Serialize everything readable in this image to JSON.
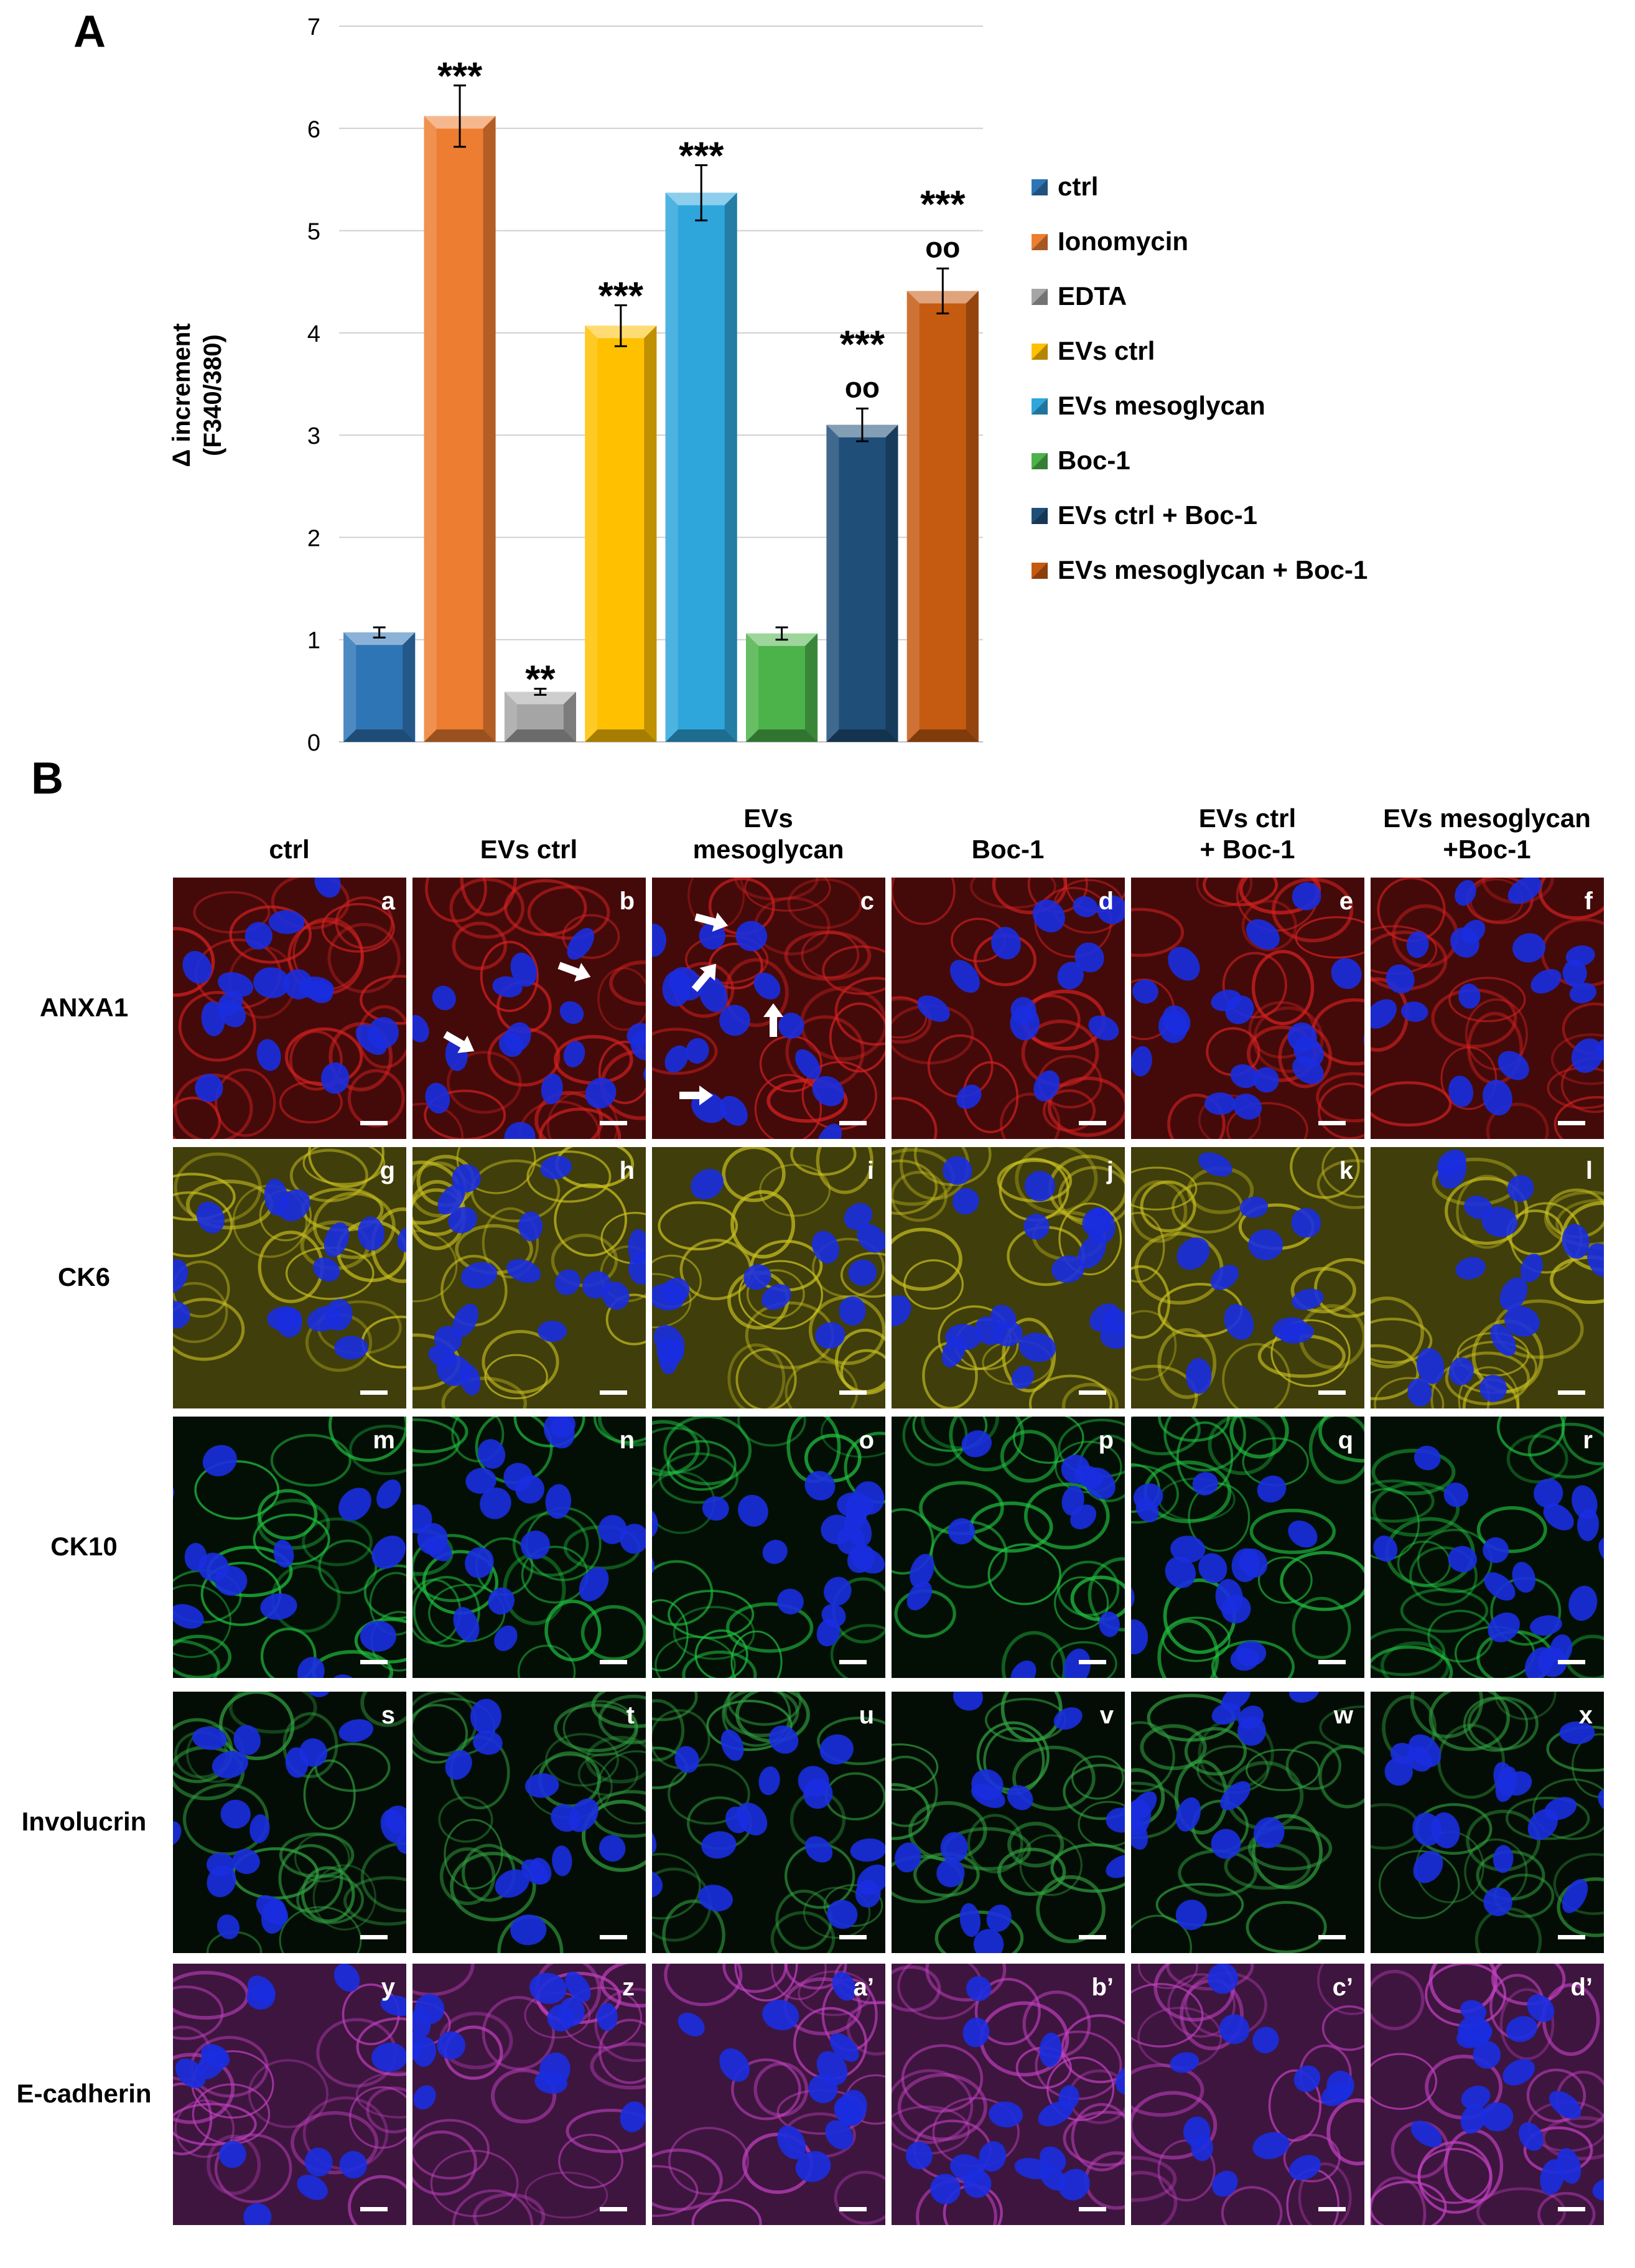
{
  "panel_labels": {
    "a": "A",
    "b": "B"
  },
  "chart_data": {
    "type": "bar",
    "title": "",
    "ylabel_line1": "Δ increment",
    "ylabel_line2": "(F340/380)",
    "ylim": [
      0,
      7
    ],
    "yticks": [
      0,
      1,
      2,
      3,
      4,
      5,
      6,
      7
    ],
    "grid": true,
    "legend_position": "right",
    "categories": [
      "ctrl",
      "Ionomycin",
      "EDTA",
      "EVs ctrl",
      "EVs mesoglycan",
      "Boc-1",
      "EVs ctrl + Boc-1",
      "EVs mesoglycan + Boc-1"
    ],
    "values": [
      1.07,
      6.12,
      0.49,
      4.07,
      5.37,
      1.06,
      3.1,
      4.41
    ],
    "errors": [
      0.05,
      0.3,
      0.03,
      0.2,
      0.27,
      0.06,
      0.16,
      0.22
    ],
    "colors": [
      "#2e75b6",
      "#ed7d31",
      "#a5a5a5",
      "#ffc000",
      "#2ea6dc",
      "#4cb24a",
      "#1f4e79",
      "#c55a11"
    ],
    "annotations": [
      {
        "category": "Ionomycin",
        "text": "***"
      },
      {
        "category": "EDTA",
        "text": "**"
      },
      {
        "category": "EVs ctrl",
        "text": "***"
      },
      {
        "category": "EVs mesoglycan",
        "text": "***"
      },
      {
        "category": "EVs ctrl + Boc-1",
        "text": "***"
      },
      {
        "category": "EVs ctrl + Boc-1",
        "text": "oo"
      },
      {
        "category": "EVs mesoglycan + Boc-1",
        "text": "***"
      },
      {
        "category": "EVs mesoglycan + Boc-1",
        "text": "oo"
      }
    ]
  },
  "microscopy": {
    "columns": [
      "ctrl",
      "EVs ctrl",
      "EVs\nmesoglycan",
      "Boc-1",
      "EVs ctrl\n+ Boc-1",
      "EVs mesoglycan\n+Boc-1"
    ],
    "rows": [
      {
        "label": "ANXA1",
        "stain_color": "#d42020",
        "letters": [
          "a",
          "b",
          "c",
          "d",
          "e",
          "f"
        ]
      },
      {
        "label": "CK6",
        "stain_color": "#c8c020",
        "letters": [
          "g",
          "h",
          "i",
          "j",
          "k",
          "l"
        ]
      },
      {
        "label": "CK10",
        "stain_color": "#20c040",
        "letters": [
          "m",
          "n",
          "o",
          "p",
          "q",
          "r"
        ]
      },
      {
        "label": "Involucrin",
        "stain_color": "#30a040",
        "letters": [
          "s",
          "t",
          "u",
          "v",
          "w",
          "x"
        ]
      },
      {
        "label": "E-cadherin",
        "stain_color": "#c040c0",
        "letters": [
          "y",
          "z",
          "a’",
          "b’",
          "c’",
          "d’"
        ]
      }
    ],
    "nuclei_color": "#1a2ee0",
    "arrows_in_cells": [
      "b",
      "c"
    ]
  }
}
